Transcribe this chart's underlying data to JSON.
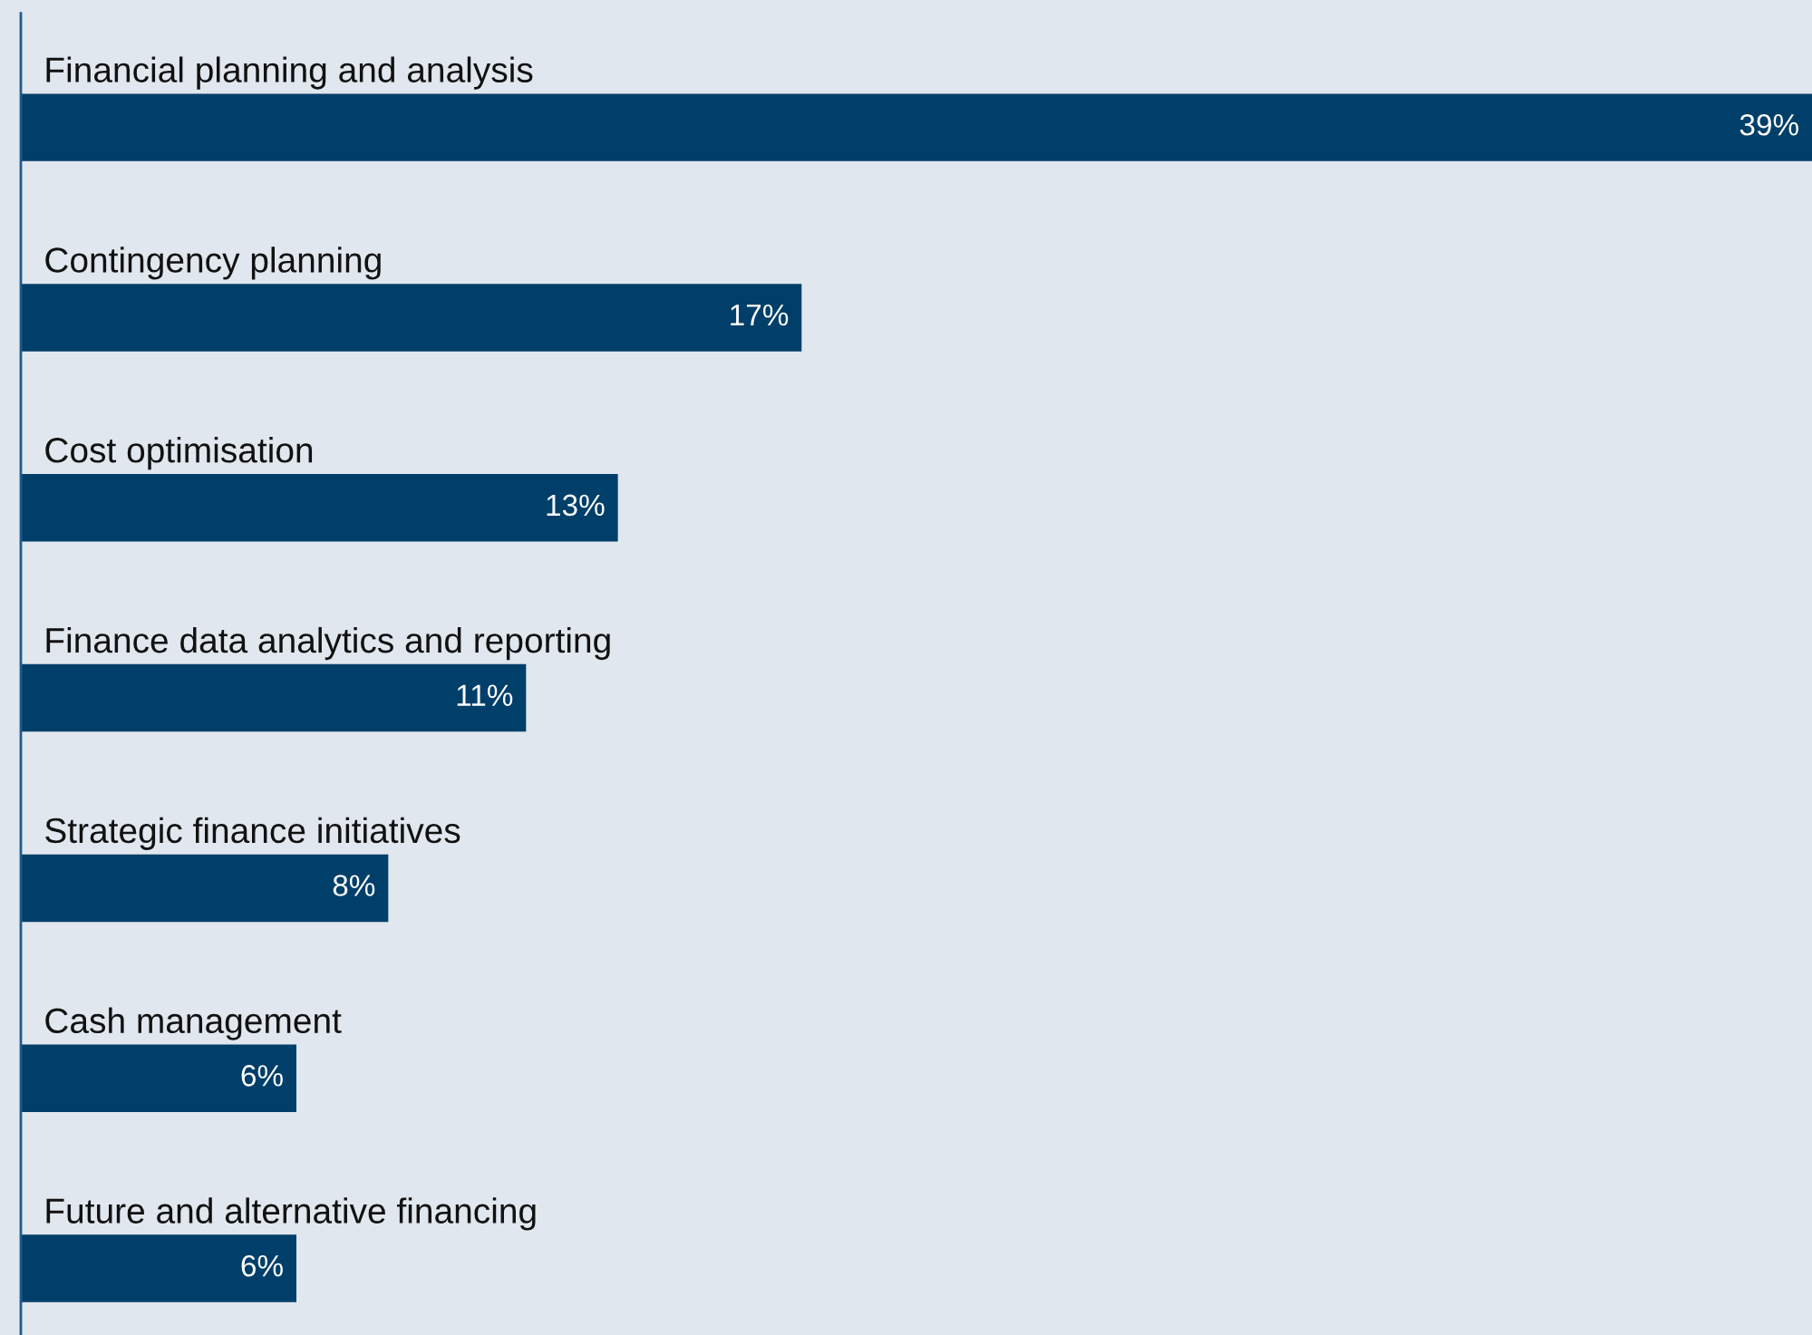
{
  "chart_data": {
    "type": "bar",
    "orientation": "horizontal",
    "categories": [
      "Financial planning and analysis",
      "Contingency planning",
      "Cost optimisation",
      "Finance data analytics and reporting",
      "Strategic finance initiatives",
      "Cash management",
      "Future and alternative financing"
    ],
    "values": [
      39,
      17,
      13,
      11,
      8,
      6,
      6
    ],
    "value_labels": [
      "39%",
      "17%",
      "13%",
      "11%",
      "8%",
      "6%",
      "6%"
    ],
    "color": "#003f69",
    "tick_labels": "y"
  }
}
